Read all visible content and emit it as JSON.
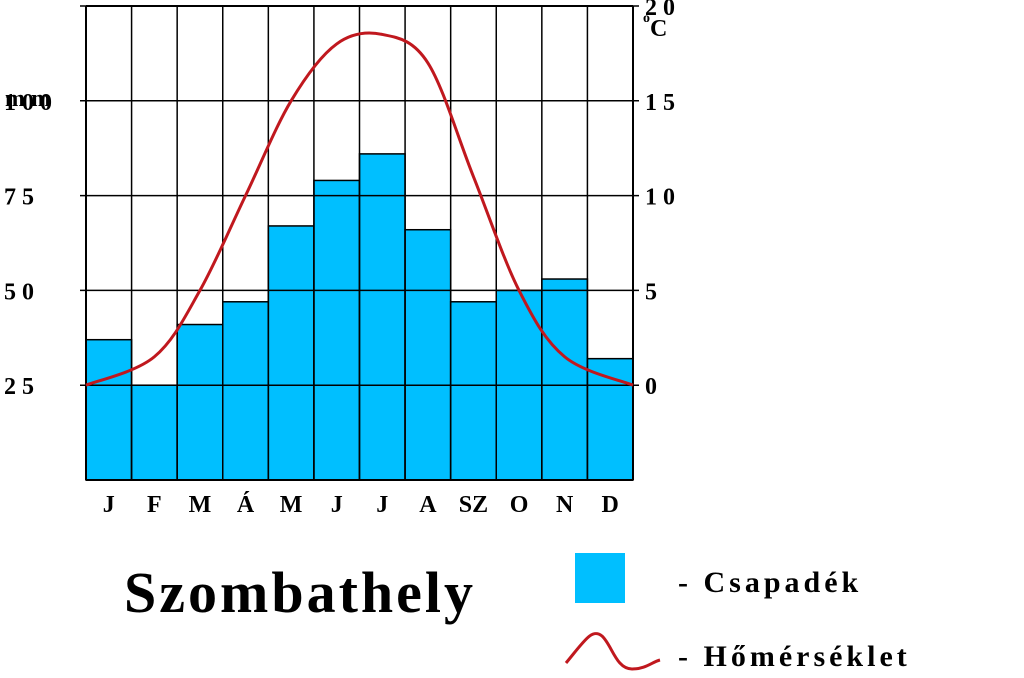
{
  "chart_data": {
    "type": "climate",
    "title": "Szombathely",
    "categories": [
      "J",
      "F",
      "M",
      "Á",
      "M",
      "J",
      "J",
      "A",
      "SZ",
      "O",
      "N",
      "D"
    ],
    "series": [
      {
        "name": "Csapadék",
        "type": "bar",
        "axis": "left",
        "color": "#00BFFF",
        "values": [
          37,
          25,
          41,
          47,
          67,
          79,
          86,
          66,
          47,
          50,
          53,
          32
        ]
      },
      {
        "name": "Hőmérséklet",
        "type": "line",
        "axis": "right",
        "color": "#C0181E",
        "values": [
          0,
          1.5,
          5,
          10,
          15,
          18,
          18.5,
          17,
          11,
          5,
          1.5,
          0
        ]
      }
    ],
    "y_left": {
      "label": "mm",
      "ticks": [
        25,
        50,
        75,
        100
      ],
      "range": [
        0,
        125
      ]
    },
    "y_right": {
      "label": "°C",
      "label_sup": "o",
      "label_main": "C",
      "ticks": [
        0,
        5,
        10,
        15,
        20
      ],
      "range": [
        -5,
        20
      ]
    },
    "grid": true,
    "legend": [
      {
        "label": "- Csapadék",
        "symbol": "bar"
      },
      {
        "label": "- Hőmérséklet",
        "symbol": "line"
      }
    ]
  }
}
